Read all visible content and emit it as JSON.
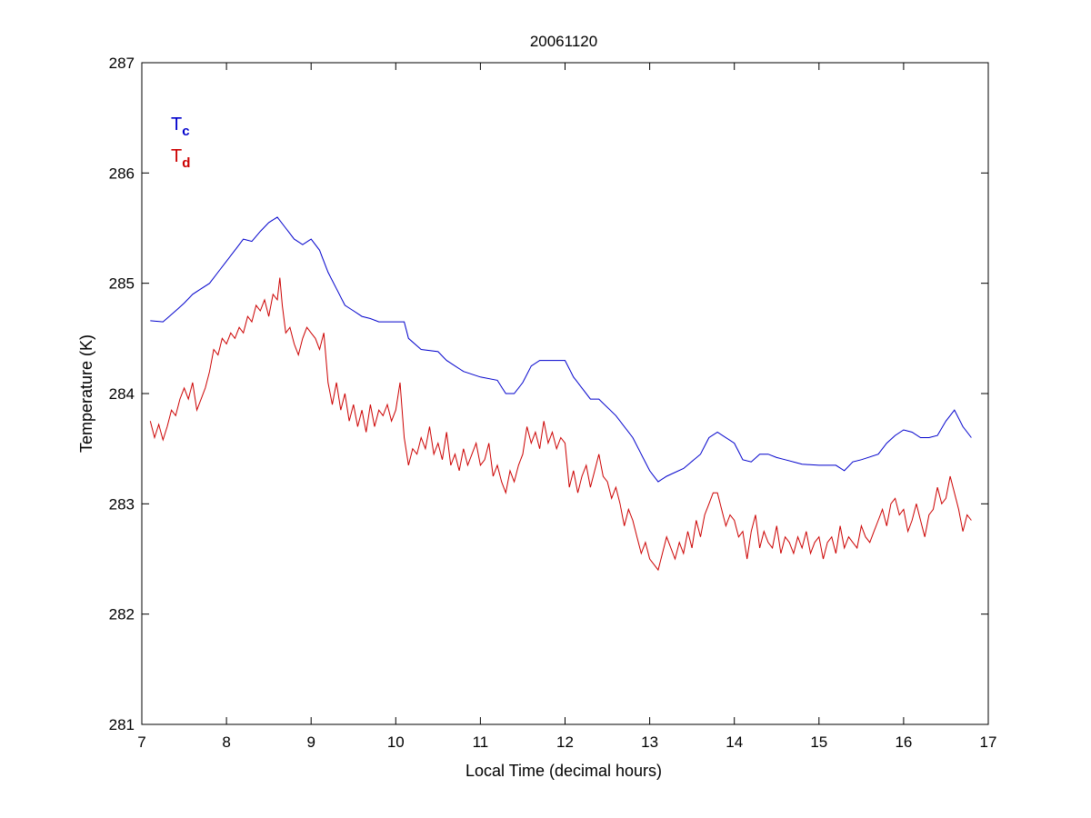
{
  "chart_data": {
    "type": "line",
    "title": "20061120",
    "xlabel": "Local Time (decimal hours)",
    "ylabel": "Temperature (K)",
    "xlim": [
      7,
      17
    ],
    "ylim": [
      281,
      287
    ],
    "xticks": [
      "7",
      "8",
      "9",
      "10",
      "11",
      "12",
      "13",
      "14",
      "15",
      "16",
      "17"
    ],
    "yticks": [
      "281",
      "282",
      "283",
      "284",
      "285",
      "286",
      "287"
    ],
    "grid": false,
    "legend_position": "top-left",
    "series": [
      {
        "name": "Tc",
        "legend_main": "T",
        "legend_sub": "c",
        "color": "#0000cc",
        "x": [
          7.1,
          7.25,
          7.4,
          7.5,
          7.6,
          7.7,
          7.8,
          7.9,
          8.0,
          8.1,
          8.2,
          8.3,
          8.4,
          8.5,
          8.6,
          8.7,
          8.8,
          8.9,
          9.0,
          9.1,
          9.2,
          9.3,
          9.4,
          9.5,
          9.6,
          9.7,
          9.8,
          9.9,
          10.0,
          10.1,
          10.15,
          10.3,
          10.5,
          10.6,
          10.8,
          11.0,
          11.2,
          11.3,
          11.4,
          11.5,
          11.6,
          11.7,
          11.8,
          12.0,
          12.1,
          12.2,
          12.3,
          12.4,
          12.6,
          12.8,
          12.9,
          13.0,
          13.1,
          13.2,
          13.4,
          13.6,
          13.7,
          13.8,
          14.0,
          14.1,
          14.2,
          14.3,
          14.4,
          14.5,
          14.6,
          14.8,
          15.0,
          15.2,
          15.3,
          15.4,
          15.5,
          15.7,
          15.8,
          15.9,
          16.0,
          16.1,
          16.2,
          16.3,
          16.4,
          16.5,
          16.6,
          16.7,
          16.8
        ],
        "values": [
          284.66,
          284.65,
          284.75,
          284.82,
          284.9,
          284.95,
          285.0,
          285.1,
          285.2,
          285.3,
          285.4,
          285.38,
          285.47,
          285.55,
          285.6,
          285.5,
          285.4,
          285.35,
          285.4,
          285.3,
          285.1,
          284.95,
          284.8,
          284.75,
          284.7,
          284.68,
          284.65,
          284.65,
          284.65,
          284.65,
          284.5,
          284.4,
          284.38,
          284.3,
          284.2,
          284.15,
          284.12,
          284.0,
          284.0,
          284.1,
          284.25,
          284.3,
          284.3,
          284.3,
          284.15,
          284.05,
          283.95,
          283.95,
          283.8,
          283.6,
          283.45,
          283.3,
          283.2,
          283.25,
          283.32,
          283.45,
          283.6,
          283.65,
          283.55,
          283.4,
          283.38,
          283.45,
          283.45,
          283.42,
          283.4,
          283.36,
          283.35,
          283.35,
          283.3,
          283.38,
          283.4,
          283.45,
          283.55,
          283.62,
          283.67,
          283.65,
          283.6,
          283.6,
          283.62,
          283.75,
          283.85,
          283.7,
          283.6
        ]
      },
      {
        "name": "Td",
        "legend_main": "T",
        "legend_sub": "d",
        "color": "#cc0000",
        "x": [
          7.1,
          7.15,
          7.2,
          7.25,
          7.3,
          7.35,
          7.4,
          7.45,
          7.5,
          7.55,
          7.6,
          7.65,
          7.7,
          7.75,
          7.8,
          7.85,
          7.9,
          7.95,
          8.0,
          8.05,
          8.1,
          8.15,
          8.2,
          8.25,
          8.3,
          8.35,
          8.4,
          8.45,
          8.5,
          8.55,
          8.6,
          8.63,
          8.66,
          8.7,
          8.75,
          8.8,
          8.85,
          8.9,
          8.95,
          9.0,
          9.05,
          9.1,
          9.15,
          9.2,
          9.25,
          9.3,
          9.35,
          9.4,
          9.45,
          9.5,
          9.55,
          9.6,
          9.65,
          9.7,
          9.75,
          9.8,
          9.85,
          9.9,
          9.95,
          10.0,
          10.05,
          10.1,
          10.15,
          10.2,
          10.25,
          10.3,
          10.35,
          10.4,
          10.45,
          10.5,
          10.55,
          10.6,
          10.65,
          10.7,
          10.75,
          10.8,
          10.85,
          10.9,
          10.95,
          11.0,
          11.05,
          11.1,
          11.15,
          11.2,
          11.25,
          11.3,
          11.35,
          11.4,
          11.45,
          11.5,
          11.55,
          11.6,
          11.65,
          11.7,
          11.75,
          11.8,
          11.85,
          11.9,
          11.95,
          12.0,
          12.05,
          12.1,
          12.15,
          12.2,
          12.25,
          12.3,
          12.35,
          12.4,
          12.45,
          12.5,
          12.55,
          12.6,
          12.65,
          12.7,
          12.75,
          12.8,
          12.85,
          12.9,
          12.95,
          13.0,
          13.05,
          13.1,
          13.15,
          13.2,
          13.25,
          13.3,
          13.35,
          13.4,
          13.45,
          13.5,
          13.55,
          13.6,
          13.65,
          13.7,
          13.75,
          13.8,
          13.85,
          13.9,
          13.95,
          14.0,
          14.05,
          14.1,
          14.15,
          14.2,
          14.25,
          14.3,
          14.35,
          14.4,
          14.45,
          14.5,
          14.55,
          14.6,
          14.65,
          14.7,
          14.75,
          14.8,
          14.85,
          14.9,
          14.95,
          15.0,
          15.05,
          15.1,
          15.15,
          15.2,
          15.25,
          15.3,
          15.35,
          15.4,
          15.45,
          15.5,
          15.55,
          15.6,
          15.65,
          15.7,
          15.75,
          15.8,
          15.85,
          15.9,
          15.95,
          16.0,
          16.05,
          16.1,
          16.15,
          16.2,
          16.25,
          16.3,
          16.35,
          16.4,
          16.45,
          16.5,
          16.55,
          16.6,
          16.65,
          16.7,
          16.75,
          16.8
        ],
        "values": [
          283.75,
          283.6,
          283.72,
          283.58,
          283.7,
          283.85,
          283.8,
          283.95,
          284.05,
          283.95,
          284.1,
          283.85,
          283.95,
          284.05,
          284.2,
          284.4,
          284.35,
          284.5,
          284.45,
          284.55,
          284.5,
          284.6,
          284.55,
          284.7,
          284.65,
          284.8,
          284.75,
          284.85,
          284.7,
          284.9,
          284.85,
          285.05,
          284.8,
          284.55,
          284.6,
          284.45,
          284.35,
          284.5,
          284.6,
          284.55,
          284.5,
          284.4,
          284.55,
          284.1,
          283.9,
          284.1,
          283.85,
          284.0,
          283.75,
          283.9,
          283.7,
          283.85,
          283.65,
          283.9,
          283.7,
          283.85,
          283.8,
          283.9,
          283.75,
          283.85,
          284.1,
          283.6,
          283.35,
          283.5,
          283.45,
          283.6,
          283.5,
          283.7,
          283.45,
          283.55,
          283.4,
          283.65,
          283.35,
          283.45,
          283.3,
          283.5,
          283.35,
          283.45,
          283.55,
          283.35,
          283.4,
          283.55,
          283.25,
          283.35,
          283.2,
          283.1,
          283.3,
          283.2,
          283.35,
          283.45,
          283.7,
          283.55,
          283.65,
          283.5,
          283.75,
          283.55,
          283.65,
          283.5,
          283.6,
          283.55,
          283.15,
          283.3,
          283.1,
          283.25,
          283.35,
          283.15,
          283.3,
          283.45,
          283.25,
          283.2,
          283.05,
          283.15,
          283.0,
          282.8,
          282.95,
          282.85,
          282.7,
          282.55,
          282.65,
          282.5,
          282.45,
          282.4,
          282.55,
          282.7,
          282.6,
          282.5,
          282.65,
          282.55,
          282.75,
          282.6,
          282.85,
          282.7,
          282.9,
          283.0,
          283.1,
          283.1,
          282.95,
          282.8,
          282.9,
          282.85,
          282.7,
          282.75,
          282.5,
          282.75,
          282.9,
          282.6,
          282.75,
          282.65,
          282.6,
          282.8,
          282.55,
          282.7,
          282.65,
          282.55,
          282.7,
          282.6,
          282.75,
          282.55,
          282.65,
          282.7,
          282.5,
          282.65,
          282.7,
          282.55,
          282.8,
          282.6,
          282.7,
          282.65,
          282.6,
          282.8,
          282.7,
          282.65,
          282.75,
          282.85,
          282.95,
          282.8,
          283.0,
          283.05,
          282.9,
          282.95,
          282.75,
          282.85,
          283.0,
          282.85,
          282.7,
          282.9,
          282.95,
          283.15,
          283.0,
          283.05,
          283.25,
          283.1,
          282.95,
          282.75,
          282.9,
          282.85
        ]
      }
    ]
  }
}
